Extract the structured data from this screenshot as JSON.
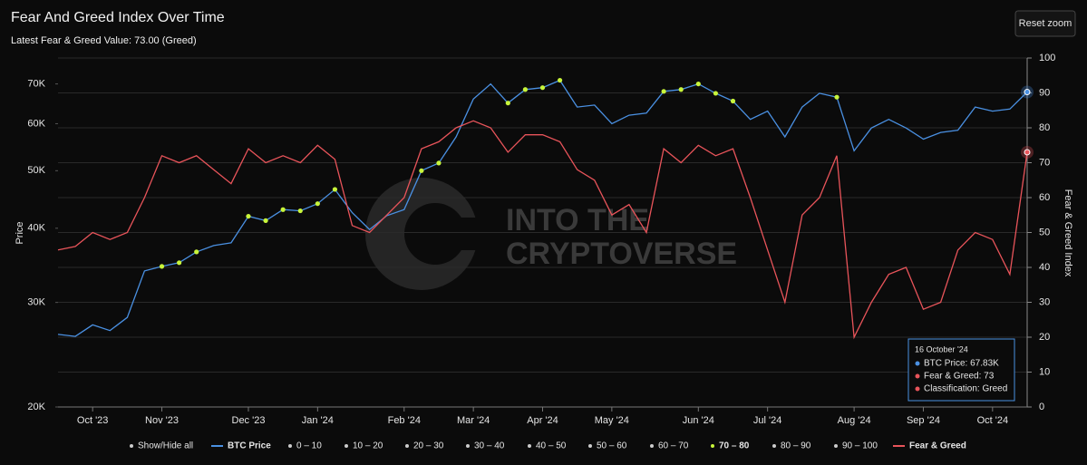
{
  "chart_data": {
    "type": "line",
    "title": "Fear And Greed Index Over Time",
    "subtitle": "Latest Fear & Greed Value: 73.00 (Greed)",
    "button": "Reset zoom",
    "ylabel": "Price",
    "y2label": "Fear & Greed Index",
    "watermark": [
      "INTO THE",
      "CRYPTOVERSE"
    ],
    "categories": [
      null,
      null,
      "Oct '23",
      null,
      null,
      null,
      "Nov '23",
      null,
      null,
      null,
      null,
      "Dec '23",
      null,
      null,
      null,
      "Jan '24",
      null,
      null,
      null,
      null,
      "Feb '24",
      null,
      null,
      null,
      "Mar '24",
      null,
      null,
      null,
      "Apr '24",
      null,
      null,
      null,
      "May '24",
      null,
      null,
      null,
      null,
      "Jun '24",
      null,
      null,
      null,
      "Jul '24",
      null,
      null,
      null,
      null,
      "Aug '24",
      null,
      null,
      null,
      "Sep '24",
      null,
      null,
      null,
      "Oct '24",
      null,
      null
    ],
    "series": [
      {
        "name": "BTC Price",
        "color": "#4a90e2",
        "values": [
          26500,
          26300,
          27500,
          26900,
          28300,
          33900,
          34500,
          35000,
          36500,
          37400,
          37800,
          41900,
          41200,
          43000,
          42800,
          44000,
          46500,
          42500,
          39800,
          42000,
          43000,
          50000,
          51500,
          57000,
          66000,
          70000,
          65000,
          68500,
          69000,
          71000,
          64000,
          64500,
          60000,
          62000,
          62500,
          68000,
          68500,
          70000,
          67500,
          65500,
          61000,
          63000,
          57000,
          64000,
          67500,
          66500,
          54000,
          59000,
          61000,
          59000,
          56500,
          58000,
          58500,
          64000,
          63000,
          63500,
          67830
        ]
      },
      {
        "name": "Fear & Greed",
        "color": "#e8545a",
        "axis": "y2",
        "values": [
          45,
          46,
          50,
          48,
          50,
          60,
          72,
          70,
          72,
          68,
          64,
          74,
          70,
          72,
          70,
          75,
          71,
          52,
          50,
          55,
          60,
          74,
          76,
          80,
          82,
          80,
          73,
          78,
          78,
          76,
          68,
          65,
          55,
          58,
          50,
          74,
          70,
          75,
          72,
          74,
          60,
          45,
          30,
          55,
          60,
          72,
          20,
          30,
          38,
          40,
          28,
          30,
          45,
          50,
          48,
          38,
          73
        ]
      }
    ],
    "ylog": true,
    "ylim": [
      20000,
      77400
    ],
    "yticks": [
      {
        "value": 20000,
        "label": "20K"
      },
      {
        "value": 30000,
        "label": "30K"
      },
      {
        "value": 40000,
        "label": "40K"
      },
      {
        "value": 50000,
        "label": "50K"
      },
      {
        "value": 60000,
        "label": "60K"
      },
      {
        "value": 70000,
        "label": "70K"
      }
    ],
    "y2lim": [
      0,
      100
    ],
    "y2ticks": [
      0,
      10,
      20,
      30,
      40,
      50,
      60,
      70,
      80,
      90,
      100
    ],
    "grid": true,
    "highlight": {
      "range": [
        70,
        80
      ],
      "color": "#c8f53a"
    },
    "legend": {
      "toggle": "Show/Hide all",
      "ranges": [
        "0 – 10",
        "10 – 20",
        "20 – 30",
        "30 – 40",
        "40 – 50",
        "50 – 60",
        "60 – 70",
        "70 – 80",
        "80 – 90",
        "90 – 100"
      ]
    },
    "tooltip": {
      "date": "16 October '24",
      "lines": [
        "BTC Price: 67.83K",
        "Fear & Greed: 73",
        "Classification: Greed"
      ]
    }
  }
}
